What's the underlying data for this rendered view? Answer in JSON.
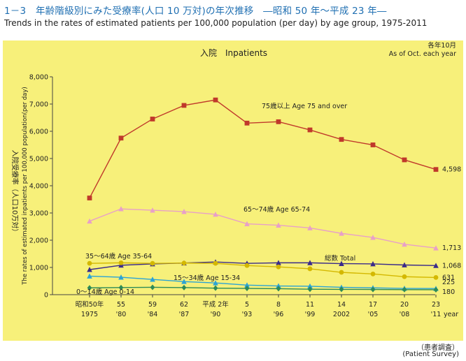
{
  "header": {
    "title_ja": "1－3　年齢階級別にみた受療率(人口 10 万対)の年次推移　―昭和 50 年～平成 23 年―",
    "title_en": "Trends in the rates of estimated patients per 100,000 population (per day) by age group, 1975-2011"
  },
  "footer": {
    "source_ja": "（患者調査）",
    "source_en": "(Patient Survey)"
  },
  "chart_data": {
    "type": "line",
    "title": "入院　Inpatients",
    "note_ja": "各年10月",
    "note_en": "As of Oct. each year",
    "ylabel_ja": "入院受療率（人口10万対）",
    "ylabel_en": "The rates of estimated inpatients per 100,000 population(per day)",
    "xlabel": "year",
    "ylim": [
      0,
      8000
    ],
    "yticks": [
      "0",
      "1,000",
      "2,000",
      "3,000",
      "4,000",
      "5,000",
      "6,000",
      "7,000",
      "8,000"
    ],
    "categories": [
      [
        "昭和50年",
        "1975"
      ],
      [
        "55",
        "'80"
      ],
      [
        "59",
        "'84"
      ],
      [
        "62",
        "'87"
      ],
      [
        "平成 2年",
        "'90"
      ],
      [
        "5",
        "'93"
      ],
      [
        "8",
        "'96"
      ],
      [
        "11",
        "'99"
      ],
      [
        "14",
        "2002"
      ],
      [
        "17",
        "'05"
      ],
      [
        "20",
        "'08"
      ],
      [
        "23",
        "'11"
      ]
    ],
    "grid": false,
    "series": [
      {
        "name": "75歳以上  Age 75 and over",
        "color": "#c0392b",
        "marker": "square",
        "values": [
          3550,
          5750,
          6450,
          6950,
          7150,
          6300,
          6350,
          6050,
          5700,
          5500,
          4950,
          4598
        ],
        "end_label": "4,598"
      },
      {
        "name": "65～74歳  Age 65-74",
        "color": "#e8a0c8",
        "marker": "triangle",
        "values": [
          2700,
          3150,
          3100,
          3050,
          2950,
          2600,
          2550,
          2450,
          2250,
          2100,
          1850,
          1713
        ],
        "end_label": "1,713"
      },
      {
        "name": "総数  Total",
        "color": "#3a2a8a",
        "marker": "triangle",
        "values": [
          920,
          1080,
          1130,
          1160,
          1200,
          1150,
          1170,
          1170,
          1140,
          1130,
          1090,
          1068
        ],
        "end_label": "1,068"
      },
      {
        "name": "35～64歳  Age 35-64",
        "color": "#d4b800",
        "marker": "circle",
        "values": [
          1150,
          1170,
          1150,
          1160,
          1150,
          1070,
          1020,
          950,
          820,
          760,
          660,
          631
        ],
        "end_label": "631"
      },
      {
        "name": "15～34歳  Age 15-34",
        "color": "#2aa3d6",
        "marker": "triangle",
        "values": [
          680,
          640,
          560,
          480,
          430,
          350,
          320,
          310,
          270,
          250,
          230,
          225
        ],
        "end_label": "225"
      },
      {
        "name": "0～14歳  Age 0-14",
        "color": "#2e8b57",
        "marker": "diamond",
        "values": [
          250,
          260,
          270,
          260,
          240,
          230,
          220,
          200,
          195,
          190,
          185,
          180
        ],
        "end_label": "180"
      }
    ]
  }
}
